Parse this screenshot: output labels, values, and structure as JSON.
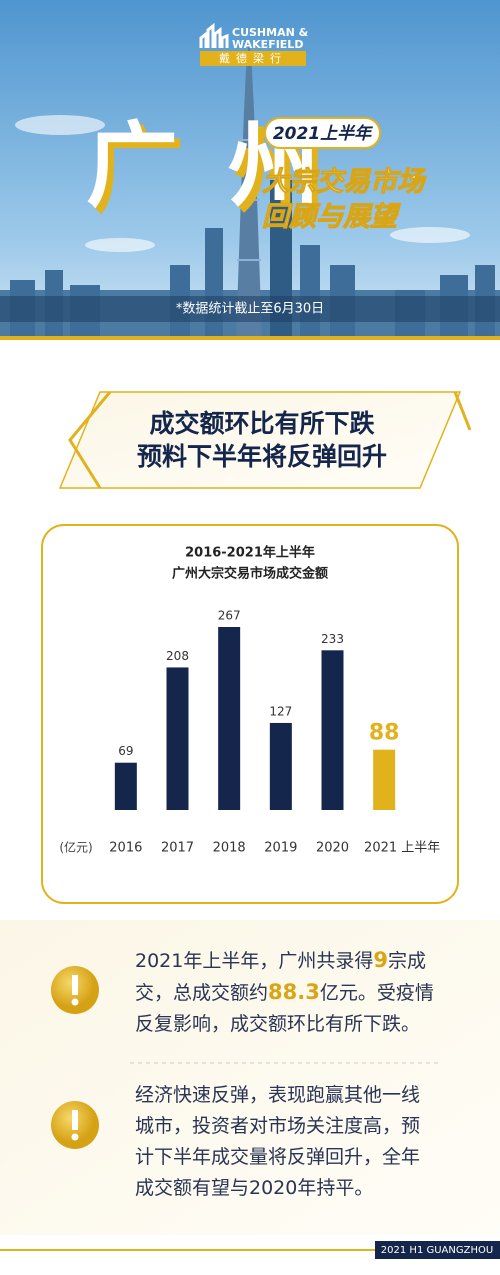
{
  "header": {
    "logo_en": [
      "CUSHMAN &",
      "WAKEFIELD"
    ],
    "logo_cn": "戴德梁行",
    "city": "广州",
    "period": "2021上半年",
    "title_lines": [
      "大宗交易市场",
      "回顾与展望"
    ],
    "note": "*数据统计截止至6月30日"
  },
  "section": {
    "headline": [
      "成交额环比有所下跌",
      "预料下半年将反弹回升"
    ]
  },
  "chart_data": {
    "type": "bar",
    "title": "2016-2021年上半年",
    "subtitle": "广州大宗交易市场成交金额",
    "unit": "(亿元)",
    "categories": [
      "2016",
      "2017",
      "2018",
      "2019",
      "2020",
      "2021 上半年"
    ],
    "values": [
      69,
      208,
      267,
      127,
      233,
      88
    ],
    "colors": [
      "#14264c",
      "#14264c",
      "#14264c",
      "#14264c",
      "#14264c",
      "#e2b21c"
    ]
  },
  "paragraphs": [
    [
      "2021年上半年，广州共录得",
      "9",
      "宗成交，总成交额约",
      "88.3",
      "亿元。受疫情反复影响，成交额环比有所下跌。"
    ],
    [
      "经济快速反弹，表现跑赢其他一线城市，投资者对市场关注度高，预计下半年成交量将反弹回升，全年成交额有望与2020年持平。"
    ]
  ],
  "footer": "2021 H1 GUANGZHOU"
}
